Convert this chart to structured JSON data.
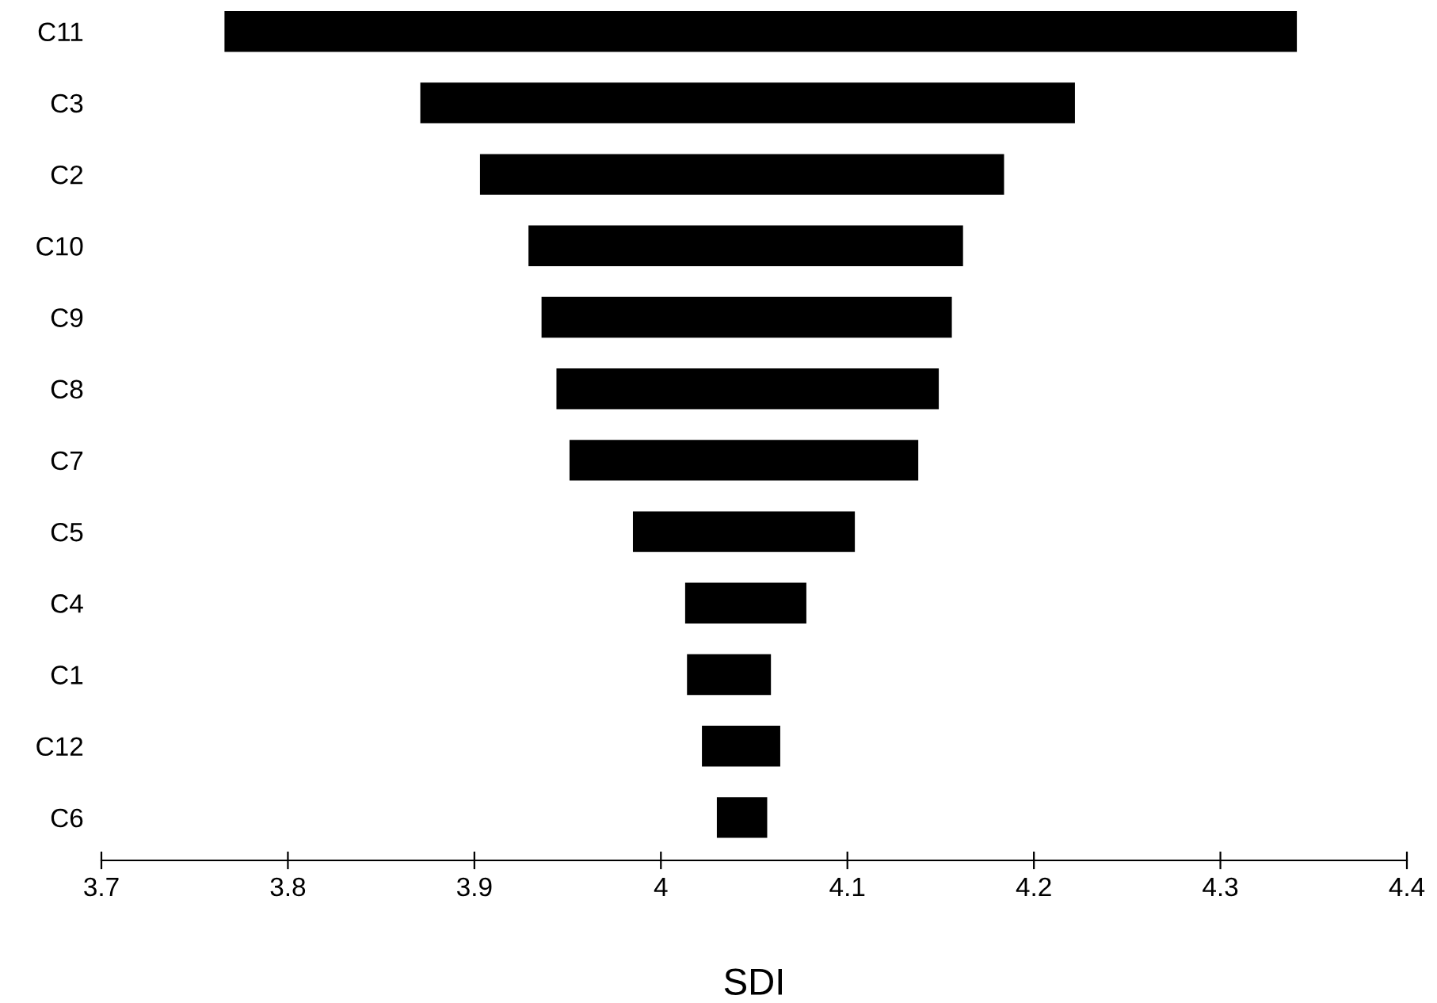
{
  "chart_data": {
    "type": "bar",
    "orientation": "horizontal",
    "xlabel": "SDI",
    "categories": [
      "C11",
      "C3",
      "C2",
      "C10",
      "C9",
      "C8",
      "C7",
      "C5",
      "C4",
      "C1",
      "C12",
      "C6"
    ],
    "base": [
      3.766,
      3.871,
      3.903,
      3.929,
      3.936,
      3.944,
      3.951,
      3.985,
      4.013,
      4.014,
      4.022,
      4.03
    ],
    "values": [
      0.575,
      0.351,
      0.281,
      0.233,
      0.22,
      0.205,
      0.187,
      0.119,
      0.065,
      0.045,
      0.042,
      0.027
    ],
    "color": "#000000",
    "xlim": [
      3.7,
      4.4
    ],
    "xticks": [
      3.7,
      3.8,
      3.9,
      4,
      4.1,
      4.2,
      4.3,
      4.4
    ],
    "grid": false
  }
}
